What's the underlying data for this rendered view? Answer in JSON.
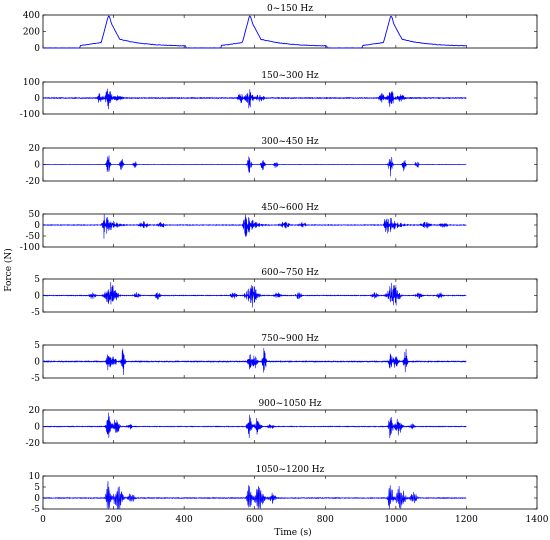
{
  "chart_data": {
    "type": "line",
    "xlabel": "Time (s)",
    "ylabel": "Force (N)",
    "xlim": [
      0,
      1400
    ],
    "xticks": [
      0,
      200,
      400,
      600,
      800,
      1000,
      1200,
      1400
    ],
    "x_data_range": [
      0,
      1200
    ],
    "line_color": "#0000ff",
    "grid": false,
    "event_centers_s": [
      185,
      585,
      985
    ],
    "panels": [
      {
        "title": "0~150 Hz",
        "ylim": [
          0,
          400
        ],
        "yticks": [
          0,
          200,
          400
        ],
        "peak": 410,
        "baseline": 18
      },
      {
        "title": "150~300 Hz",
        "ylim": [
          -100,
          100
        ],
        "yticks": [
          -100,
          0,
          100
        ],
        "peak": 75
      },
      {
        "title": "300~450 Hz",
        "ylim": [
          -20,
          20
        ],
        "yticks": [
          -20,
          0,
          20
        ],
        "peak": 17
      },
      {
        "title": "450~600 Hz",
        "ylim": [
          -100,
          50
        ],
        "yticks": [
          -100,
          -50,
          0,
          50
        ],
        "peak": 60
      },
      {
        "title": "600~750 Hz",
        "ylim": [
          -5,
          5
        ],
        "yticks": [
          -5,
          0,
          5
        ],
        "peak": 4
      },
      {
        "title": "750~900 Hz",
        "ylim": [
          -5,
          5
        ],
        "yticks": [
          -5,
          0,
          5
        ],
        "peak": 4.5
      },
      {
        "title": "900~1050 Hz",
        "ylim": [
          -20,
          20
        ],
        "yticks": [
          -20,
          0,
          20
        ],
        "peak": 16
      },
      {
        "title": "1050~1200 Hz",
        "ylim": [
          -5,
          10
        ],
        "yticks": [
          -5,
          0,
          5,
          10
        ],
        "peak": 9
      }
    ]
  }
}
